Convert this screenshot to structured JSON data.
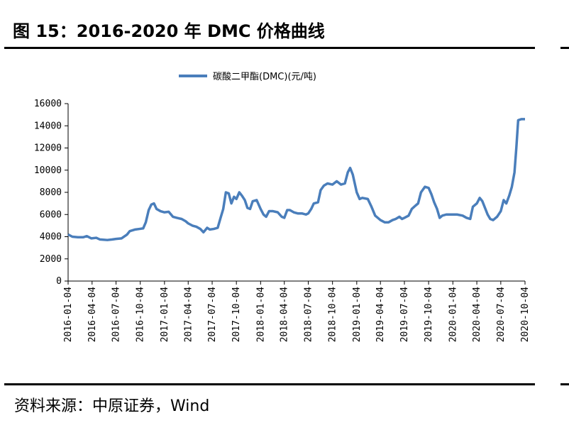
{
  "figure": {
    "title": "图 15：2016-2020 年 DMC 价格曲线",
    "source": "资料来源：中原证券，Wind"
  },
  "colors": {
    "line": "#4a7ebb",
    "axis": "#000000"
  },
  "chart_data": {
    "type": "line",
    "title": "",
    "xlabel": "",
    "ylabel": "",
    "ylim": [
      0,
      16000
    ],
    "yticks": [
      0,
      2000,
      4000,
      6000,
      8000,
      10000,
      12000,
      14000,
      16000
    ],
    "xticks": [
      "2016-01-04",
      "2016-04-04",
      "2016-07-04",
      "2016-10-04",
      "2017-01-04",
      "2017-04-04",
      "2017-07-04",
      "2017-10-04",
      "2018-01-04",
      "2018-04-04",
      "2018-07-04",
      "2018-10-04",
      "2019-01-04",
      "2019-04-04",
      "2019-07-04",
      "2019-10-04",
      "2020-01-04",
      "2020-04-04",
      "2020-07-04",
      "2020-10-04"
    ],
    "legend": "top-center",
    "grid": false,
    "series": [
      {
        "name": "碳酸二甲酯(DMC)(元/吨)",
        "points": [
          [
            "2016-01-04",
            4200
          ],
          [
            "2016-01-20",
            4000
          ],
          [
            "2016-02-10",
            3950
          ],
          [
            "2016-03-01",
            3950
          ],
          [
            "2016-03-15",
            4050
          ],
          [
            "2016-04-01",
            3850
          ],
          [
            "2016-04-20",
            3900
          ],
          [
            "2016-05-04",
            3750
          ],
          [
            "2016-06-01",
            3700
          ],
          [
            "2016-06-20",
            3750
          ],
          [
            "2016-07-04",
            3800
          ],
          [
            "2016-07-25",
            3850
          ],
          [
            "2016-08-15",
            4200
          ],
          [
            "2016-08-25",
            4500
          ],
          [
            "2016-09-15",
            4650
          ],
          [
            "2016-10-01",
            4700
          ],
          [
            "2016-10-15",
            4750
          ],
          [
            "2016-10-25",
            5300
          ],
          [
            "2016-11-05",
            6400
          ],
          [
            "2016-11-15",
            6900
          ],
          [
            "2016-11-25",
            7000
          ],
          [
            "2016-12-05",
            6500
          ],
          [
            "2016-12-20",
            6300
          ],
          [
            "2017-01-04",
            6200
          ],
          [
            "2017-01-20",
            6250
          ],
          [
            "2017-02-05",
            5800
          ],
          [
            "2017-02-20",
            5700
          ],
          [
            "2017-03-10",
            5600
          ],
          [
            "2017-03-25",
            5400
          ],
          [
            "2017-04-04",
            5200
          ],
          [
            "2017-04-20",
            5000
          ],
          [
            "2017-05-05",
            4900
          ],
          [
            "2017-05-20",
            4700
          ],
          [
            "2017-06-01",
            4400
          ],
          [
            "2017-06-15",
            4800
          ],
          [
            "2017-06-25",
            4650
          ],
          [
            "2017-07-10",
            4700
          ],
          [
            "2017-07-25",
            4800
          ],
          [
            "2017-08-05",
            5700
          ],
          [
            "2017-08-15",
            6500
          ],
          [
            "2017-08-25",
            8000
          ],
          [
            "2017-09-05",
            7900
          ],
          [
            "2017-09-15",
            7000
          ],
          [
            "2017-09-25",
            7600
          ],
          [
            "2017-10-04",
            7400
          ],
          [
            "2017-10-15",
            8000
          ],
          [
            "2017-10-25",
            7700
          ],
          [
            "2017-11-05",
            7300
          ],
          [
            "2017-11-15",
            6600
          ],
          [
            "2017-11-25",
            6500
          ],
          [
            "2017-12-05",
            7200
          ],
          [
            "2017-12-20",
            7300
          ],
          [
            "2018-01-04",
            6500
          ],
          [
            "2018-01-15",
            6000
          ],
          [
            "2018-01-25",
            5800
          ],
          [
            "2018-02-05",
            6300
          ],
          [
            "2018-02-20",
            6300
          ],
          [
            "2018-03-10",
            6200
          ],
          [
            "2018-03-25",
            5800
          ],
          [
            "2018-04-04",
            5700
          ],
          [
            "2018-04-15",
            6400
          ],
          [
            "2018-04-25",
            6400
          ],
          [
            "2018-05-10",
            6200
          ],
          [
            "2018-05-25",
            6100
          ],
          [
            "2018-06-10",
            6100
          ],
          [
            "2018-06-25",
            6000
          ],
          [
            "2018-07-04",
            6100
          ],
          [
            "2018-07-15",
            6500
          ],
          [
            "2018-07-25",
            7000
          ],
          [
            "2018-08-10",
            7100
          ],
          [
            "2018-08-20",
            8200
          ],
          [
            "2018-09-01",
            8600
          ],
          [
            "2018-09-15",
            8800
          ],
          [
            "2018-10-04",
            8700
          ],
          [
            "2018-10-20",
            9000
          ],
          [
            "2018-11-05",
            8700
          ],
          [
            "2018-11-20",
            8800
          ],
          [
            "2018-12-01",
            9800
          ],
          [
            "2018-12-10",
            10200
          ],
          [
            "2018-12-20",
            9600
          ],
          [
            "2019-01-04",
            8000
          ],
          [
            "2019-01-15",
            7400
          ],
          [
            "2019-01-25",
            7500
          ],
          [
            "2019-02-15",
            7400
          ],
          [
            "2019-03-01",
            6700
          ],
          [
            "2019-03-15",
            5900
          ],
          [
            "2019-03-25",
            5700
          ],
          [
            "2019-04-04",
            5500
          ],
          [
            "2019-04-20",
            5300
          ],
          [
            "2019-05-05",
            5300
          ],
          [
            "2019-05-20",
            5500
          ],
          [
            "2019-06-01",
            5600
          ],
          [
            "2019-06-15",
            5800
          ],
          [
            "2019-06-25",
            5600
          ],
          [
            "2019-07-04",
            5700
          ],
          [
            "2019-07-20",
            5900
          ],
          [
            "2019-08-01",
            6500
          ],
          [
            "2019-08-15",
            6800
          ],
          [
            "2019-08-25",
            7000
          ],
          [
            "2019-09-05",
            8000
          ],
          [
            "2019-09-20",
            8500
          ],
          [
            "2019-10-04",
            8400
          ],
          [
            "2019-10-15",
            7800
          ],
          [
            "2019-10-25",
            7100
          ],
          [
            "2019-11-05",
            6500
          ],
          [
            "2019-11-15",
            5700
          ],
          [
            "2019-11-25",
            5900
          ],
          [
            "2019-12-10",
            6000
          ],
          [
            "2020-01-04",
            6000
          ],
          [
            "2020-01-20",
            6000
          ],
          [
            "2020-02-10",
            5900
          ],
          [
            "2020-02-25",
            5700
          ],
          [
            "2020-03-10",
            5600
          ],
          [
            "2020-03-20",
            6700
          ],
          [
            "2020-04-04",
            7000
          ],
          [
            "2020-04-15",
            7500
          ],
          [
            "2020-04-25",
            7200
          ],
          [
            "2020-05-05",
            6600
          ],
          [
            "2020-05-15",
            6000
          ],
          [
            "2020-05-25",
            5600
          ],
          [
            "2020-06-05",
            5500
          ],
          [
            "2020-06-20",
            5800
          ],
          [
            "2020-07-04",
            6300
          ],
          [
            "2020-07-15",
            7300
          ],
          [
            "2020-07-25",
            7000
          ],
          [
            "2020-08-05",
            7700
          ],
          [
            "2020-08-15",
            8500
          ],
          [
            "2020-08-25",
            9800
          ],
          [
            "2020-09-01",
            12000
          ],
          [
            "2020-09-08",
            14500
          ],
          [
            "2020-09-20",
            14600
          ],
          [
            "2020-10-04",
            14600
          ]
        ]
      }
    ]
  }
}
